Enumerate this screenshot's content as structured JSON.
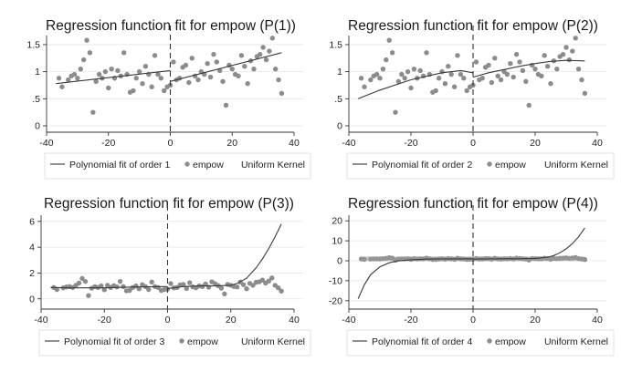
{
  "chart_data": [
    {
      "type": "scatter",
      "title": "Regression function fit for empow (P(1))",
      "xlim": [
        -40,
        40
      ],
      "ylim": [
        0,
        1.6
      ],
      "xticks": [
        -40,
        -20,
        0,
        20,
        40
      ],
      "yticks": [
        0,
        0.5,
        1,
        1.5
      ],
      "ytick_labels": [
        "0",
        ".5",
        "1",
        "1.5"
      ],
      "cutoff": 0,
      "legend": {
        "placement": "bottom",
        "items": [
          "Polynomial fit of order 1",
          "empow",
          "Uniform Kernel"
        ]
      },
      "scatter": {
        "name": "empow",
        "x": [
          -36,
          -35,
          -33,
          -32,
          -31,
          -30,
          -29,
          -28,
          -27,
          -26,
          -25,
          -24,
          -23,
          -22,
          -21,
          -20,
          -19,
          -18,
          -17,
          -16,
          -15,
          -14,
          -13,
          -12,
          -11,
          -10,
          -9,
          -8,
          -7,
          -6,
          -5,
          -4,
          -3,
          -2,
          -1,
          0,
          1,
          2,
          3,
          4,
          5,
          6,
          7,
          8,
          9,
          10,
          11,
          12,
          13,
          14,
          15,
          16,
          17,
          18,
          19,
          20,
          21,
          22,
          23,
          24,
          25,
          26,
          27,
          28,
          29,
          30,
          31,
          32,
          33,
          34,
          35,
          36
        ],
        "y": [
          0.88,
          0.72,
          0.85,
          0.92,
          0.95,
          0.88,
          1.05,
          1.22,
          1.58,
          1.35,
          0.25,
          0.82,
          0.95,
          0.88,
          1.0,
          0.7,
          1.05,
          0.88,
          1.02,
          0.92,
          1.35,
          0.95,
          0.62,
          0.65,
          0.88,
          1.0,
          0.78,
          1.1,
          0.95,
          0.72,
          1.3,
          0.95,
          0.88,
          0.65,
          0.72,
          0.75,
          1.18,
          0.85,
          0.88,
          1.08,
          1.12,
          0.8,
          1.25,
          0.92,
          0.85,
          1.0,
          0.95,
          1.15,
          0.9,
          1.32,
          1.18,
          1.02,
          0.82,
          0.38,
          1.12,
          1.05,
          0.95,
          0.92,
          1.3,
          1.1,
          0.78,
          1.2,
          1.05,
          1.28,
          1.32,
          1.45,
          1.22,
          1.38,
          1.62,
          1.05,
          0.85,
          0.6
        ]
      },
      "fit": {
        "name": "Polynomial fit of order 1",
        "left": {
          "x": [
            -37,
            0
          ],
          "y": [
            0.78,
            1.02
          ]
        },
        "right": {
          "x": [
            0,
            36
          ],
          "y": [
            0.82,
            1.35
          ]
        }
      }
    },
    {
      "type": "scatter",
      "title": "Regression function fit for empow (P(2))",
      "xlim": [
        -40,
        40
      ],
      "ylim": [
        0,
        1.6
      ],
      "xticks": [
        -40,
        -20,
        0,
        20,
        40
      ],
      "yticks": [
        0,
        0.5,
        1,
        1.5
      ],
      "ytick_labels": [
        "0",
        ".5",
        "1",
        "1.5"
      ],
      "cutoff": 0,
      "legend": {
        "placement": "bottom",
        "items": [
          "Polynomial fit of order 2",
          "empow",
          "Uniform Kernel"
        ]
      },
      "scatter": {
        "name": "empow",
        "x": [
          -36,
          -35,
          -33,
          -32,
          -31,
          -30,
          -29,
          -28,
          -27,
          -26,
          -25,
          -24,
          -23,
          -22,
          -21,
          -20,
          -19,
          -18,
          -17,
          -16,
          -15,
          -14,
          -13,
          -12,
          -11,
          -10,
          -9,
          -8,
          -7,
          -6,
          -5,
          -4,
          -3,
          -2,
          -1,
          0,
          1,
          2,
          3,
          4,
          5,
          6,
          7,
          8,
          9,
          10,
          11,
          12,
          13,
          14,
          15,
          16,
          17,
          18,
          19,
          20,
          21,
          22,
          23,
          24,
          25,
          26,
          27,
          28,
          29,
          30,
          31,
          32,
          33,
          34,
          35,
          36
        ],
        "y": [
          0.88,
          0.72,
          0.85,
          0.92,
          0.95,
          0.88,
          1.05,
          1.22,
          1.58,
          1.35,
          0.25,
          0.82,
          0.95,
          0.88,
          1.0,
          0.7,
          1.05,
          0.88,
          1.02,
          0.92,
          1.35,
          0.95,
          0.62,
          0.65,
          0.88,
          1.0,
          0.78,
          1.1,
          0.95,
          0.72,
          1.3,
          0.95,
          0.88,
          0.65,
          0.72,
          0.75,
          1.18,
          0.85,
          0.88,
          1.08,
          1.12,
          0.8,
          1.25,
          0.92,
          0.85,
          1.0,
          0.95,
          1.15,
          0.9,
          1.32,
          1.18,
          1.02,
          0.82,
          0.38,
          1.12,
          1.05,
          0.95,
          0.92,
          1.3,
          1.1,
          0.78,
          1.2,
          1.05,
          1.28,
          1.32,
          1.45,
          1.22,
          1.38,
          1.62,
          1.05,
          0.85,
          0.6
        ]
      },
      "fit": {
        "name": "Polynomial fit of order 2",
        "left": {
          "x": [
            -37,
            -30,
            -20,
            -10,
            -4,
            0
          ],
          "y": [
            0.5,
            0.66,
            0.85,
            0.98,
            1.02,
            0.98
          ]
        },
        "right": {
          "x": [
            0,
            5,
            10,
            15,
            20,
            25,
            30,
            36
          ],
          "y": [
            0.9,
            0.98,
            1.04,
            1.1,
            1.15,
            1.19,
            1.21,
            1.2
          ]
        }
      }
    },
    {
      "type": "scatter",
      "title": "Regression function fit for empow (P(3))",
      "xlim": [
        -40,
        40
      ],
      "ylim": [
        -0.3,
        6.2
      ],
      "xticks": [
        -40,
        -20,
        0,
        20,
        40
      ],
      "yticks": [
        0,
        2,
        4,
        6
      ],
      "ytick_labels": [
        "0",
        "2",
        "4",
        "6"
      ],
      "cutoff": 0,
      "legend": {
        "placement": "bottom",
        "items": [
          "Polynomial fit of order 3",
          "empow",
          "Uniform Kernel"
        ]
      },
      "scatter": {
        "name": "empow",
        "x": [
          -36,
          -35,
          -33,
          -32,
          -31,
          -30,
          -29,
          -28,
          -27,
          -26,
          -25,
          -24,
          -23,
          -22,
          -21,
          -20,
          -19,
          -18,
          -17,
          -16,
          -15,
          -14,
          -13,
          -12,
          -11,
          -10,
          -9,
          -8,
          -7,
          -6,
          -5,
          -4,
          -3,
          -2,
          -1,
          0,
          1,
          2,
          3,
          4,
          5,
          6,
          7,
          8,
          9,
          10,
          11,
          12,
          13,
          14,
          15,
          16,
          17,
          18,
          19,
          20,
          21,
          22,
          23,
          24,
          25,
          26,
          27,
          28,
          29,
          30,
          31,
          32,
          33,
          34,
          35,
          36
        ],
        "y": [
          0.88,
          0.72,
          0.85,
          0.92,
          0.95,
          0.88,
          1.05,
          1.22,
          1.58,
          1.35,
          0.25,
          0.82,
          0.95,
          0.88,
          1.0,
          0.7,
          1.05,
          0.88,
          1.02,
          0.92,
          1.35,
          0.95,
          0.62,
          0.65,
          0.88,
          1.0,
          0.78,
          1.1,
          0.95,
          0.72,
          1.3,
          0.95,
          0.88,
          0.65,
          0.72,
          0.75,
          1.18,
          0.85,
          0.88,
          1.08,
          1.12,
          0.8,
          1.25,
          0.92,
          0.85,
          1.0,
          0.95,
          1.15,
          0.9,
          1.32,
          1.18,
          1.02,
          0.82,
          0.38,
          1.12,
          1.05,
          0.95,
          0.92,
          1.3,
          1.1,
          0.78,
          1.2,
          1.05,
          1.28,
          1.32,
          1.45,
          1.22,
          1.38,
          1.62,
          1.05,
          0.85,
          0.6
        ]
      },
      "fit": {
        "name": "Polynomial fit of order 3",
        "left": {
          "x": [
            -37,
            -30,
            -20,
            -10,
            0
          ],
          "y": [
            0.88,
            0.85,
            0.85,
            0.92,
            0.95
          ]
        },
        "right": {
          "x": [
            0,
            5,
            10,
            15,
            20,
            22,
            25,
            28,
            30,
            32,
            34,
            36
          ],
          "y": [
            0.8,
            0.95,
            1.0,
            1.0,
            1.05,
            1.2,
            1.6,
            2.4,
            3.1,
            3.9,
            4.8,
            5.8
          ]
        }
      }
    },
    {
      "type": "scatter",
      "title": "Regression function fit for empow (P(4))",
      "xlim": [
        -40,
        40
      ],
      "ylim": [
        -21,
        21
      ],
      "xticks": [
        -40,
        -20,
        0,
        20,
        40
      ],
      "yticks": [
        -20,
        -10,
        0,
        10,
        20
      ],
      "ytick_labels": [
        "-20",
        "-10",
        "0",
        "10",
        "20"
      ],
      "cutoff": 0,
      "legend": {
        "placement": "bottom",
        "items": [
          "Polynomial fit of order 4",
          "empow",
          "Uniform Kernel"
        ]
      },
      "scatter": {
        "name": "empow",
        "x": [
          -36,
          -35,
          -33,
          -32,
          -31,
          -30,
          -29,
          -28,
          -27,
          -26,
          -25,
          -24,
          -23,
          -22,
          -21,
          -20,
          -19,
          -18,
          -17,
          -16,
          -15,
          -14,
          -13,
          -12,
          -11,
          -10,
          -9,
          -8,
          -7,
          -6,
          -5,
          -4,
          -3,
          -2,
          -1,
          0,
          1,
          2,
          3,
          4,
          5,
          6,
          7,
          8,
          9,
          10,
          11,
          12,
          13,
          14,
          15,
          16,
          17,
          18,
          19,
          20,
          21,
          22,
          23,
          24,
          25,
          26,
          27,
          28,
          29,
          30,
          31,
          32,
          33,
          34,
          35,
          36
        ],
        "y": [
          0.88,
          0.72,
          0.85,
          0.92,
          0.95,
          0.88,
          1.05,
          1.22,
          1.58,
          1.35,
          0.25,
          0.82,
          0.95,
          0.88,
          1.0,
          0.7,
          1.05,
          0.88,
          1.02,
          0.92,
          1.35,
          0.95,
          0.62,
          0.65,
          0.88,
          1.0,
          0.78,
          1.1,
          0.95,
          0.72,
          1.3,
          0.95,
          0.88,
          0.65,
          0.72,
          0.75,
          1.18,
          0.85,
          0.88,
          1.08,
          1.12,
          0.8,
          1.25,
          0.92,
          0.85,
          1.0,
          0.95,
          1.15,
          0.9,
          1.32,
          1.18,
          1.02,
          0.82,
          0.38,
          1.12,
          1.05,
          0.95,
          0.92,
          1.3,
          1.1,
          0.78,
          1.2,
          1.05,
          1.28,
          1.32,
          1.45,
          1.22,
          1.38,
          1.62,
          1.05,
          0.85,
          0.6
        ]
      },
      "fit": {
        "name": "Polynomial fit of order 4",
        "left": {
          "x": [
            -37,
            -35,
            -33,
            -30,
            -27,
            -24,
            -20,
            -15,
            -10,
            -5,
            0
          ],
          "y": [
            -19,
            -12,
            -7,
            -3,
            -1,
            0,
            0.5,
            0.8,
            0.9,
            0.95,
            0.95
          ]
        },
        "right": {
          "x": [
            0,
            5,
            10,
            15,
            20,
            24,
            26,
            28,
            30,
            32,
            34,
            36
          ],
          "y": [
            0.8,
            0.9,
            1.0,
            1.0,
            1.2,
            1.8,
            2.6,
            4.0,
            6.0,
            8.6,
            12.0,
            16.5
          ]
        }
      }
    }
  ]
}
